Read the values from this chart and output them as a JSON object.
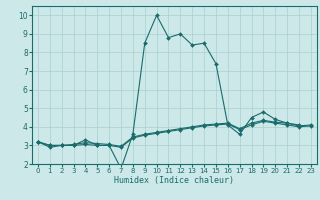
{
  "xlabel": "Humidex (Indice chaleur)",
  "x": [
    0,
    1,
    2,
    3,
    4,
    5,
    6,
    7,
    8,
    9,
    10,
    11,
    12,
    13,
    14,
    15,
    16,
    17,
    18,
    19,
    20,
    21,
    22,
    23
  ],
  "line1": [
    3.2,
    2.9,
    3.0,
    3.0,
    3.3,
    3.0,
    3.0,
    1.75,
    3.6,
    8.5,
    10.0,
    8.8,
    9.0,
    8.4,
    8.5,
    7.4,
    4.1,
    3.6,
    4.5,
    4.8,
    4.4,
    4.2,
    4.1,
    null
  ],
  "line2": [
    3.2,
    3.0,
    3.0,
    3.0,
    3.05,
    3.0,
    3.0,
    2.9,
    3.4,
    3.55,
    3.65,
    3.75,
    3.85,
    3.95,
    4.05,
    4.1,
    4.15,
    3.85,
    4.1,
    4.3,
    4.2,
    4.1,
    4.0,
    4.05
  ],
  "line3": [
    3.2,
    3.0,
    3.0,
    3.05,
    3.15,
    3.1,
    3.05,
    2.95,
    3.45,
    3.6,
    3.7,
    3.8,
    3.9,
    4.0,
    4.1,
    4.15,
    4.2,
    3.9,
    4.2,
    4.35,
    4.25,
    4.2,
    4.05,
    4.1
  ],
  "bg_color": "#cce8e8",
  "grid_color": "#aacfcf",
  "line_color": "#1a6b6b",
  "ylim": [
    2,
    10.5
  ],
  "xlim": [
    -0.5,
    23.5
  ],
  "yticks": [
    2,
    3,
    4,
    5,
    6,
    7,
    8,
    9,
    10
  ],
  "xticks": [
    0,
    1,
    2,
    3,
    4,
    5,
    6,
    7,
    8,
    9,
    10,
    11,
    12,
    13,
    14,
    15,
    16,
    17,
    18,
    19,
    20,
    21,
    22,
    23
  ]
}
